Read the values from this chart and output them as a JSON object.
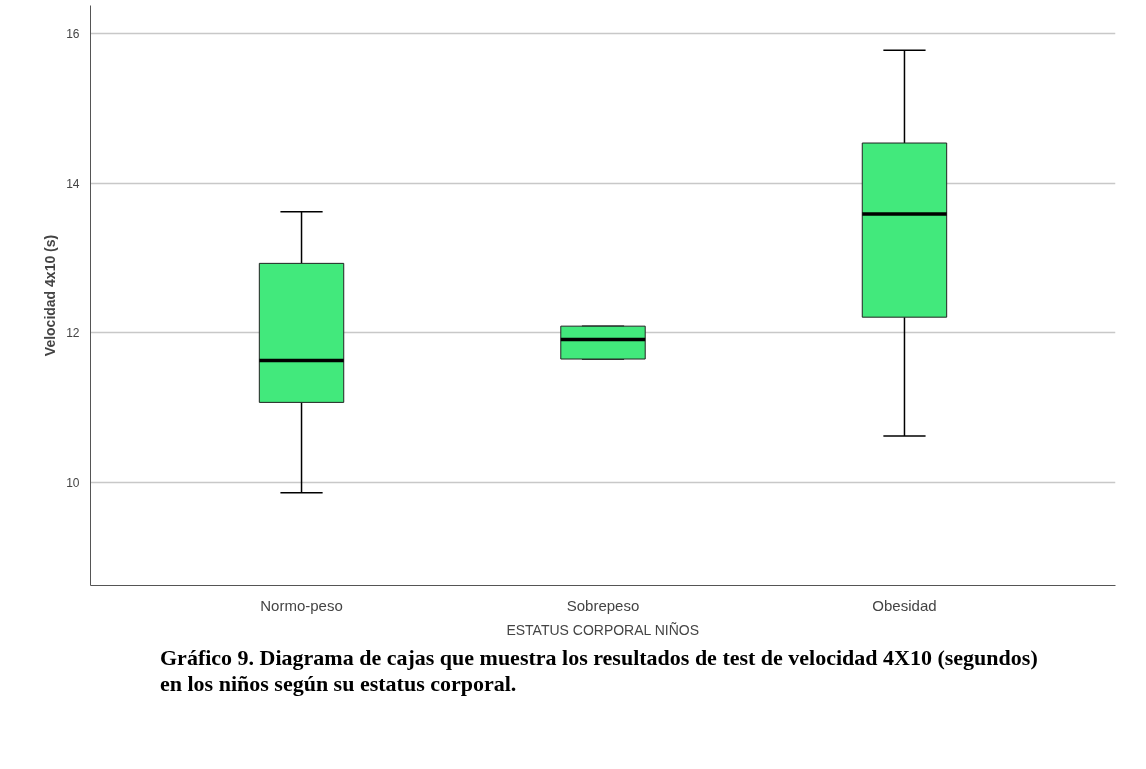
{
  "chart_data": {
    "type": "box",
    "xlabel": "ESTATUS CORPORAL NIÑOS",
    "ylabel": "Velocidad 4x10 (s)",
    "categories": [
      "Normo-peso",
      "Sobrepeso",
      "Obesidad"
    ],
    "boxes": [
      {
        "low": 9.86,
        "q1": 11.07,
        "median": 11.63,
        "q3": 12.93,
        "high": 13.62
      },
      {
        "low": 11.65,
        "q1": 11.65,
        "median": 11.91,
        "q3": 12.09,
        "high": 12.09
      },
      {
        "low": 10.62,
        "q1": 12.21,
        "median": 13.59,
        "q3": 14.54,
        "high": 15.78
      }
    ],
    "color": "#42e97c",
    "ylim": [
      8.62,
      16.38
    ],
    "yticks": [
      10,
      12,
      14,
      16
    ],
    "grid": "y",
    "annotations": [
      "Gráfico 9. Diagrama de cajas que muestra los resultados de test de velocidad 4X10 (segundos)  en los niños según su estatus corporal."
    ]
  }
}
